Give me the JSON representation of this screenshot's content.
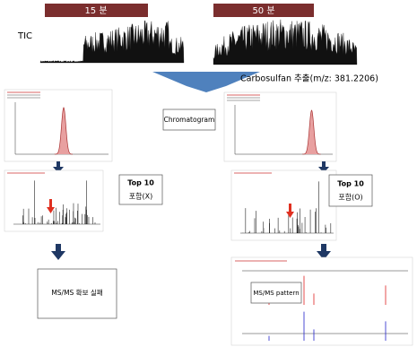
{
  "header": {
    "left": "15 분",
    "right": "50 분"
  },
  "tic_label": "TIC",
  "extraction_label": "Carbosulfan 추출(m/z: 381.2206)",
  "chromatogram_label": "Chromatogram",
  "left": {
    "top_title": "Top 10",
    "top_status": "포함(X)",
    "result": "MS/MS 확보 실패"
  },
  "right": {
    "top_title": "Top 10",
    "top_status": "포함(O)",
    "result": "MS/MS pattern"
  }
}
